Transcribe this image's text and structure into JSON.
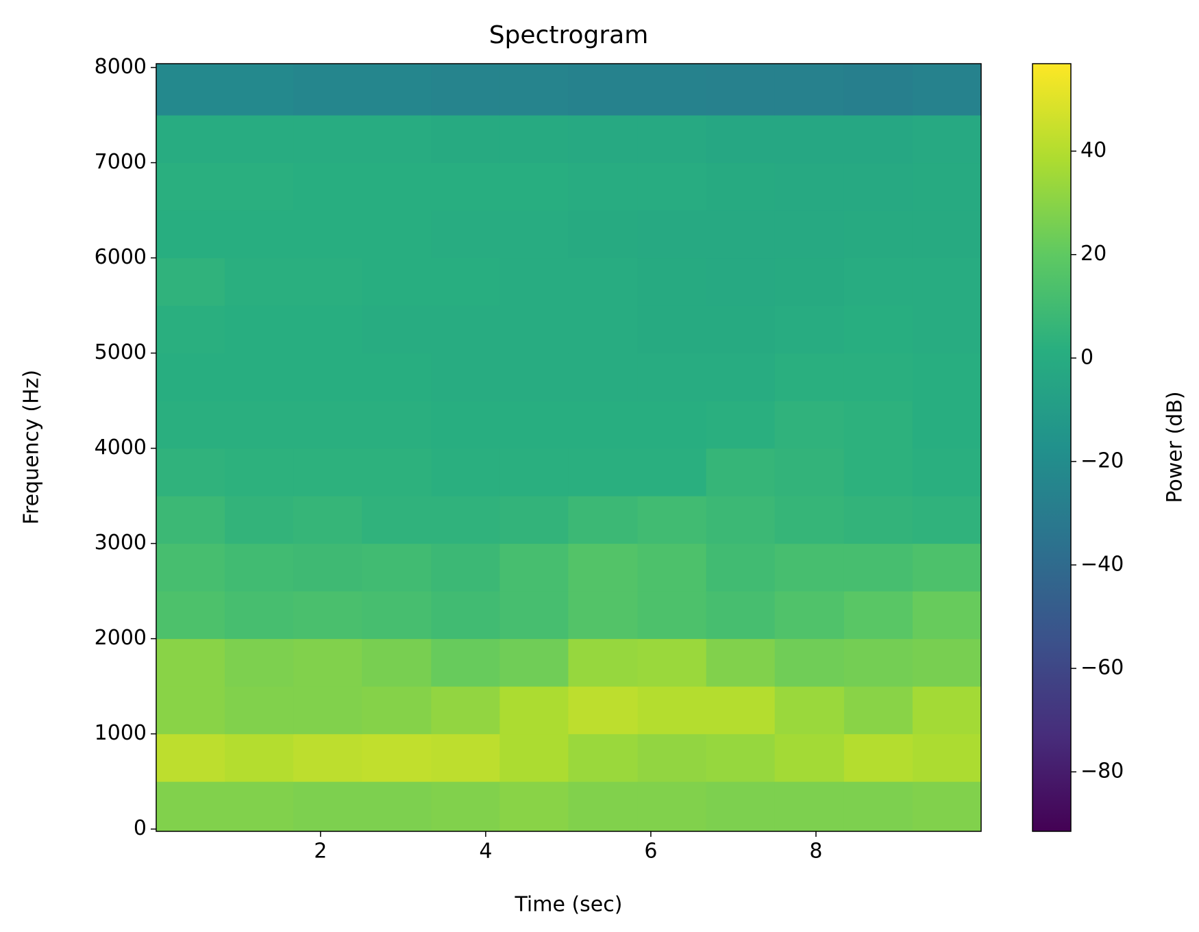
{
  "chart_data": {
    "type": "heatmap",
    "title": "Spectrogram",
    "xlabel": "Time (sec)",
    "ylabel": "Frequency (Hz)",
    "x_edges": [
      0.01,
      0.84,
      1.67,
      2.5,
      3.34,
      4.17,
      5.0,
      5.84,
      6.67,
      7.5,
      8.34,
      9.17,
      10.0
    ],
    "y_edges": [
      -24,
      500,
      1000,
      1500,
      2000,
      2500,
      3000,
      3500,
      4000,
      4500,
      5000,
      5500,
      6000,
      6500,
      7000,
      7500,
      8040
    ],
    "xlim": [
      0.01,
      10.0
    ],
    "ylim": [
      -24,
      8040
    ],
    "xticks": [
      2,
      4,
      6,
      8
    ],
    "yticks": [
      0,
      1000,
      2000,
      3000,
      4000,
      5000,
      6000,
      7000,
      8000
    ],
    "z": [
      [
        28,
        28,
        27,
        27,
        28,
        30,
        28,
        28,
        27,
        27,
        27,
        28
      ],
      [
        42,
        40,
        42,
        43,
        42,
        38,
        34,
        32,
        33,
        36,
        40,
        38
      ],
      [
        30,
        28,
        28,
        29,
        32,
        38,
        42,
        40,
        40,
        34,
        30,
        36
      ],
      [
        30,
        27,
        28,
        26,
        22,
        24,
        33,
        34,
        28,
        24,
        25,
        26
      ],
      [
        14,
        12,
        13,
        12,
        10,
        12,
        16,
        14,
        12,
        15,
        18,
        22
      ],
      [
        12,
        10,
        9,
        10,
        8,
        12,
        16,
        14,
        10,
        12,
        12,
        14
      ],
      [
        8,
        5,
        6,
        4,
        4,
        5,
        8,
        10,
        8,
        6,
        5,
        4
      ],
      [
        4,
        3,
        3,
        3,
        2,
        2,
        2,
        2,
        6,
        5,
        3,
        2
      ],
      [
        2,
        2,
        2,
        2,
        1,
        1,
        1,
        1,
        2,
        4,
        3,
        1
      ],
      [
        1,
        1,
        1,
        1,
        0,
        0,
        0,
        0,
        0,
        2,
        2,
        1
      ],
      [
        2,
        1,
        1,
        0,
        0,
        0,
        0,
        -1,
        -1,
        0,
        1,
        0
      ],
      [
        4,
        2,
        2,
        1,
        1,
        0,
        0,
        -1,
        -2,
        -1,
        0,
        0
      ],
      [
        1,
        1,
        1,
        1,
        0,
        0,
        -1,
        -2,
        -2,
        -2,
        -1,
        -1
      ],
      [
        2,
        2,
        1,
        1,
        1,
        1,
        0,
        0,
        -1,
        -2,
        -2,
        -1
      ],
      [
        0,
        0,
        0,
        0,
        -1,
        -1,
        -2,
        -2,
        -3,
        -3,
        -3,
        -2
      ],
      [
        -22,
        -22,
        -24,
        -24,
        -25,
        -25,
        -26,
        -26,
        -27,
        -27,
        -28,
        -26
      ]
    ],
    "colormap": "viridis",
    "clim": [
      -91.5,
      56.9
    ],
    "colorbar_ticks": [
      {
        "value": -80,
        "label": "−80"
      },
      {
        "value": -60,
        "label": "−60"
      },
      {
        "value": -40,
        "label": "−40"
      },
      {
        "value": -20,
        "label": "−20"
      },
      0,
      20,
      40
    ],
    "colorbar_label": "Power (dB)"
  }
}
